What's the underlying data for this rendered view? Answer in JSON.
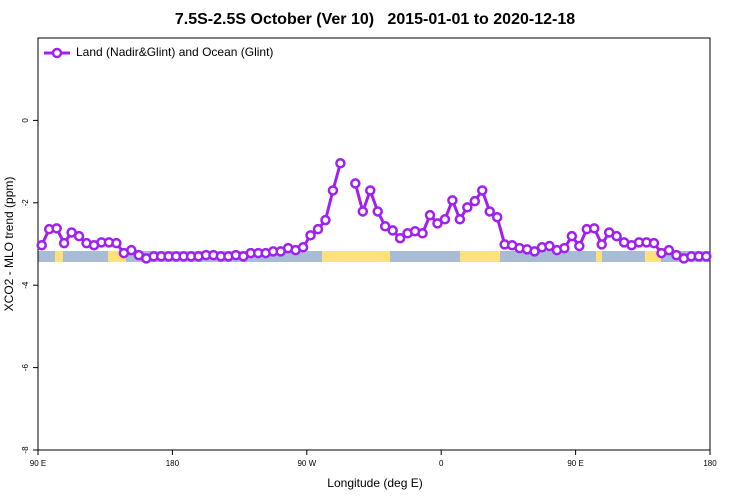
{
  "chart_data": {
    "type": "line",
    "title": "7.5S-2.5S October (Ver 10)   2015-01-01 to 2020-12-18",
    "xlabel": "Longitude (deg E)",
    "ylabel": "XCO2 - MLO trend (ppm)",
    "x": [
      92.5,
      97.5,
      102.5,
      107.5,
      112.5,
      117.5,
      122.5,
      127.5,
      132.5,
      137.5,
      142.5,
      147.5,
      152.5,
      157.5,
      162.5,
      167.5,
      172.5,
      177.5,
      182.5,
      187.5,
      192.5,
      197.5,
      202.5,
      207.5,
      212.5,
      217.5,
      222.5,
      227.5,
      232.5,
      237.5,
      242.5,
      247.5,
      252.5,
      257.5,
      262.5,
      267.5,
      272.5,
      277.5,
      282.5,
      287.5,
      292.5,
      297.5,
      302.5,
      307.5,
      312.5,
      317.5,
      322.5,
      327.5,
      332.5,
      337.5,
      342.5,
      347.5,
      352.5,
      357.5,
      362.5,
      367.5,
      372.5,
      377.5,
      382.5,
      387.5,
      392.5,
      397.5,
      402.5,
      407.5,
      412.5,
      417.5,
      422.5,
      427.5,
      432.5,
      437.5,
      442.5,
      447.5,
      452.5,
      457.5,
      462.5,
      467.5,
      472.5,
      477.5,
      482.5,
      487.5,
      492.5,
      497.5,
      502.5,
      507.5,
      512.5,
      517.5,
      522.5,
      527.5,
      532.5,
      537.5
    ],
    "series": [
      {
        "name": "Land (Nadir&Glint) and Ocean (Glint)",
        "color": "#a020f0",
        "values": [
          -3.03,
          -2.64,
          -2.62,
          -2.98,
          -2.72,
          -2.81,
          -2.98,
          -3.03,
          -2.96,
          -2.96,
          -2.98,
          -3.22,
          -3.15,
          -3.27,
          -3.35,
          -3.3,
          -3.3,
          -3.3,
          -3.3,
          -3.3,
          -3.3,
          -3.3,
          -3.27,
          -3.27,
          -3.3,
          -3.3,
          -3.27,
          -3.3,
          -3.22,
          -3.22,
          -3.22,
          -3.18,
          -3.18,
          -3.1,
          -3.15,
          -3.08,
          -2.79,
          -2.64,
          -2.42,
          -1.7,
          -1.04,
          null,
          -1.53,
          -2.21,
          -1.7,
          -2.21,
          -2.57,
          -2.67,
          -2.86,
          -2.74,
          -2.69,
          -2.74,
          -2.3,
          -2.5,
          -2.4,
          -1.94,
          -2.4,
          -2.11,
          -1.96,
          -1.7,
          -2.21,
          -2.35,
          -3.01,
          -3.03,
          -3.1,
          -3.13,
          -3.18,
          -3.08,
          -3.05,
          -3.15,
          -3.1,
          -2.81,
          -3.05,
          -2.64,
          -2.62,
          -3.01,
          -2.72,
          -2.81,
          -2.96,
          -3.03,
          -2.96,
          -2.96,
          -2.98,
          -3.22,
          -3.15,
          -3.27,
          -3.35,
          -3.3,
          -3.3,
          -3.3
        ]
      }
    ],
    "xlim": [
      90,
      540
    ],
    "xticks": [
      {
        "value": 90,
        "label": "90 E"
      },
      180,
      {
        "value": 270,
        "label": "90 W"
      },
      {
        "value": 360,
        "label": "0"
      },
      {
        "value": 450,
        "label": "90 E"
      },
      {
        "value": 540,
        "label": "180"
      }
    ],
    "ylim": [
      -8,
      2
    ],
    "yticks": [
      0,
      -2,
      -4,
      -6,
      -8
    ],
    "legend": "upper left"
  }
}
